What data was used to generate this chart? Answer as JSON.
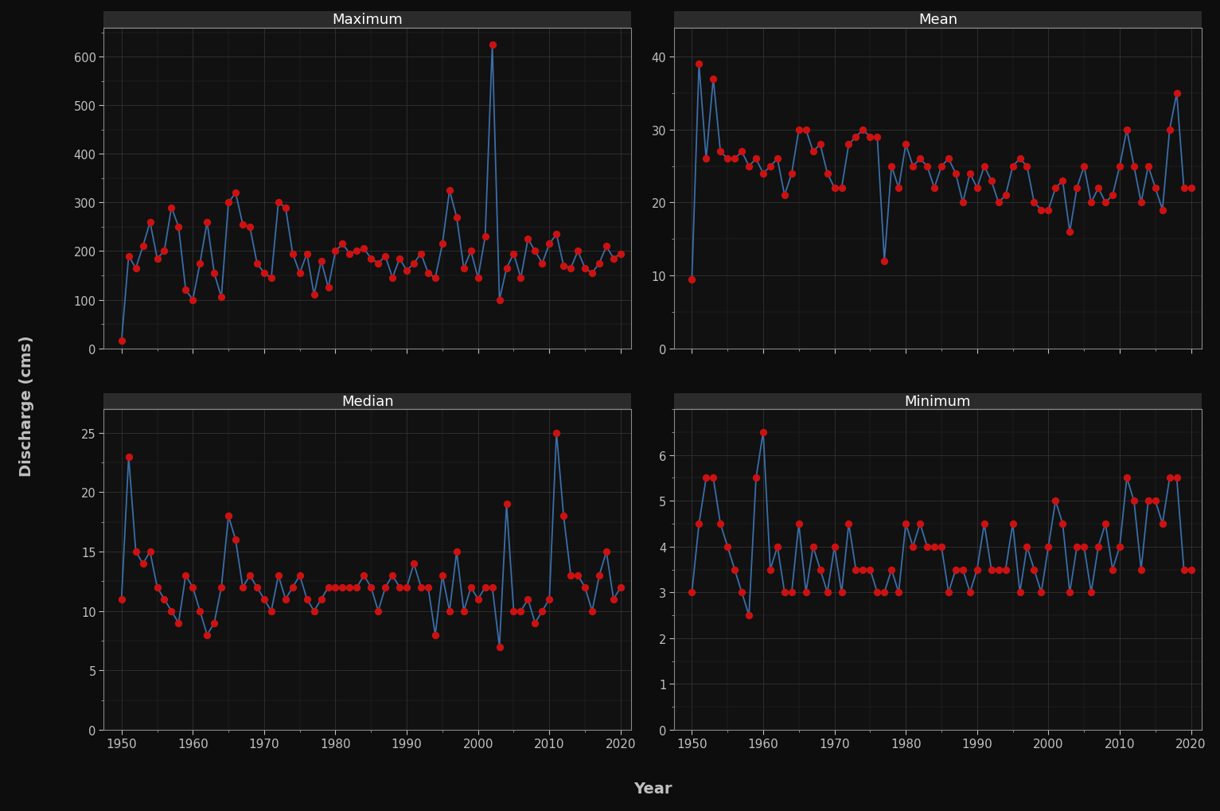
{
  "years": [
    1950,
    1951,
    1952,
    1953,
    1954,
    1955,
    1956,
    1957,
    1958,
    1959,
    1960,
    1961,
    1962,
    1963,
    1964,
    1965,
    1966,
    1967,
    1968,
    1969,
    1970,
    1971,
    1972,
    1973,
    1974,
    1975,
    1976,
    1977,
    1978,
    1979,
    1980,
    1981,
    1982,
    1983,
    1984,
    1985,
    1986,
    1987,
    1988,
    1989,
    1990,
    1991,
    1992,
    1993,
    1994,
    1995,
    1996,
    1997,
    1998,
    1999,
    2000,
    2001,
    2002,
    2003,
    2004,
    2005,
    2006,
    2007,
    2008,
    2009,
    2010,
    2011,
    2012,
    2013,
    2014,
    2015,
    2016,
    2017,
    2018,
    2019,
    2020
  ],
  "maximum": [
    15,
    190,
    165,
    210,
    260,
    185,
    200,
    290,
    250,
    120,
    100,
    175,
    260,
    155,
    105,
    300,
    320,
    255,
    250,
    175,
    155,
    145,
    300,
    290,
    195,
    155,
    195,
    110,
    180,
    125,
    200,
    215,
    195,
    200,
    205,
    185,
    175,
    190,
    145,
    185,
    160,
    175,
    195,
    155,
    145,
    215,
    325,
    270,
    165,
    200,
    145,
    230,
    625,
    100,
    165,
    195,
    145,
    225,
    200,
    175,
    215,
    235,
    170,
    165,
    200,
    165,
    155,
    175,
    210,
    185,
    195
  ],
  "mean": [
    9.5,
    39,
    26,
    37,
    27,
    26,
    26,
    27,
    25,
    26,
    24,
    25,
    26,
    21,
    24,
    30,
    30,
    27,
    28,
    24,
    22,
    22,
    28,
    29,
    30,
    29,
    29,
    12,
    25,
    22,
    28,
    25,
    26,
    25,
    22,
    25,
    26,
    24,
    20,
    24,
    22,
    25,
    23,
    20,
    21,
    25,
    26,
    25,
    20,
    19,
    19,
    22,
    23,
    16,
    22,
    25,
    20,
    22,
    20,
    21,
    25,
    30,
    25,
    20,
    25,
    22,
    19,
    30,
    35,
    22,
    22
  ],
  "median": [
    11,
    23,
    15,
    14,
    15,
    12,
    11,
    10,
    9,
    13,
    12,
    10,
    8,
    9,
    12,
    18,
    16,
    12,
    13,
    12,
    11,
    10,
    13,
    11,
    12,
    13,
    11,
    10,
    11,
    12,
    12,
    12,
    12,
    12,
    13,
    12,
    10,
    12,
    13,
    12,
    12,
    14,
    12,
    12,
    8,
    13,
    10,
    15,
    10,
    12,
    11,
    12,
    12,
    7,
    19,
    10,
    10,
    11,
    9,
    10,
    11,
    25,
    18,
    13,
    13,
    12,
    10,
    13,
    15,
    11,
    12
  ],
  "minimum": [
    3.0,
    4.5,
    5.5,
    5.5,
    4.5,
    4.0,
    3.5,
    3.0,
    2.5,
    5.5,
    6.5,
    3.5,
    4.0,
    3.0,
    3.0,
    4.5,
    3.0,
    4.0,
    3.5,
    3.0,
    4.0,
    3.0,
    4.5,
    3.5,
    3.5,
    3.5,
    3.0,
    3.0,
    3.5,
    3.0,
    4.5,
    4.0,
    4.5,
    4.0,
    4.0,
    4.0,
    3.0,
    3.5,
    3.5,
    3.0,
    3.5,
    4.5,
    3.5,
    3.5,
    3.5,
    4.5,
    3.0,
    4.0,
    3.5,
    3.0,
    4.0,
    5.0,
    4.5,
    3.0,
    4.0,
    4.0,
    3.0,
    4.0,
    4.5,
    3.5,
    4.0,
    5.5,
    5.0,
    3.5,
    5.0,
    5.0,
    4.5,
    5.5,
    5.5,
    3.5,
    3.5
  ],
  "subplot_titles": [
    "Maximum",
    "Mean",
    "Median",
    "Minimum"
  ],
  "ylabel": "Discharge (cms)",
  "xlabel": "Year",
  "bg_color": "#0d0d0d",
  "panel_plot_bg": "#111111",
  "panel_title_bg": "#2b2b2b",
  "line_color": "#3a6ea8",
  "dot_color": "#cc1111",
  "grid_color": "#2a2a2a",
  "grid_color2": "#333333",
  "text_color": "#c0c0c0",
  "spine_color": "#888888",
  "dot_size": 45,
  "line_width": 1.3,
  "ylim_maximum": [
    0,
    660
  ],
  "yticks_maximum": [
    0,
    100,
    200,
    300,
    400,
    500,
    600
  ],
  "ylim_mean": [
    0,
    44
  ],
  "yticks_mean": [
    0,
    10,
    20,
    30,
    40
  ],
  "ylim_median": [
    0,
    27
  ],
  "yticks_median": [
    0,
    5,
    10,
    15,
    20,
    25
  ],
  "ylim_minimum": [
    0,
    7
  ],
  "yticks_minimum": [
    0,
    1,
    2,
    3,
    4,
    5,
    6
  ],
  "xlim": [
    1947.5,
    2021.5
  ],
  "xticks": [
    1950,
    1960,
    1970,
    1980,
    1990,
    2000,
    2010,
    2020
  ]
}
